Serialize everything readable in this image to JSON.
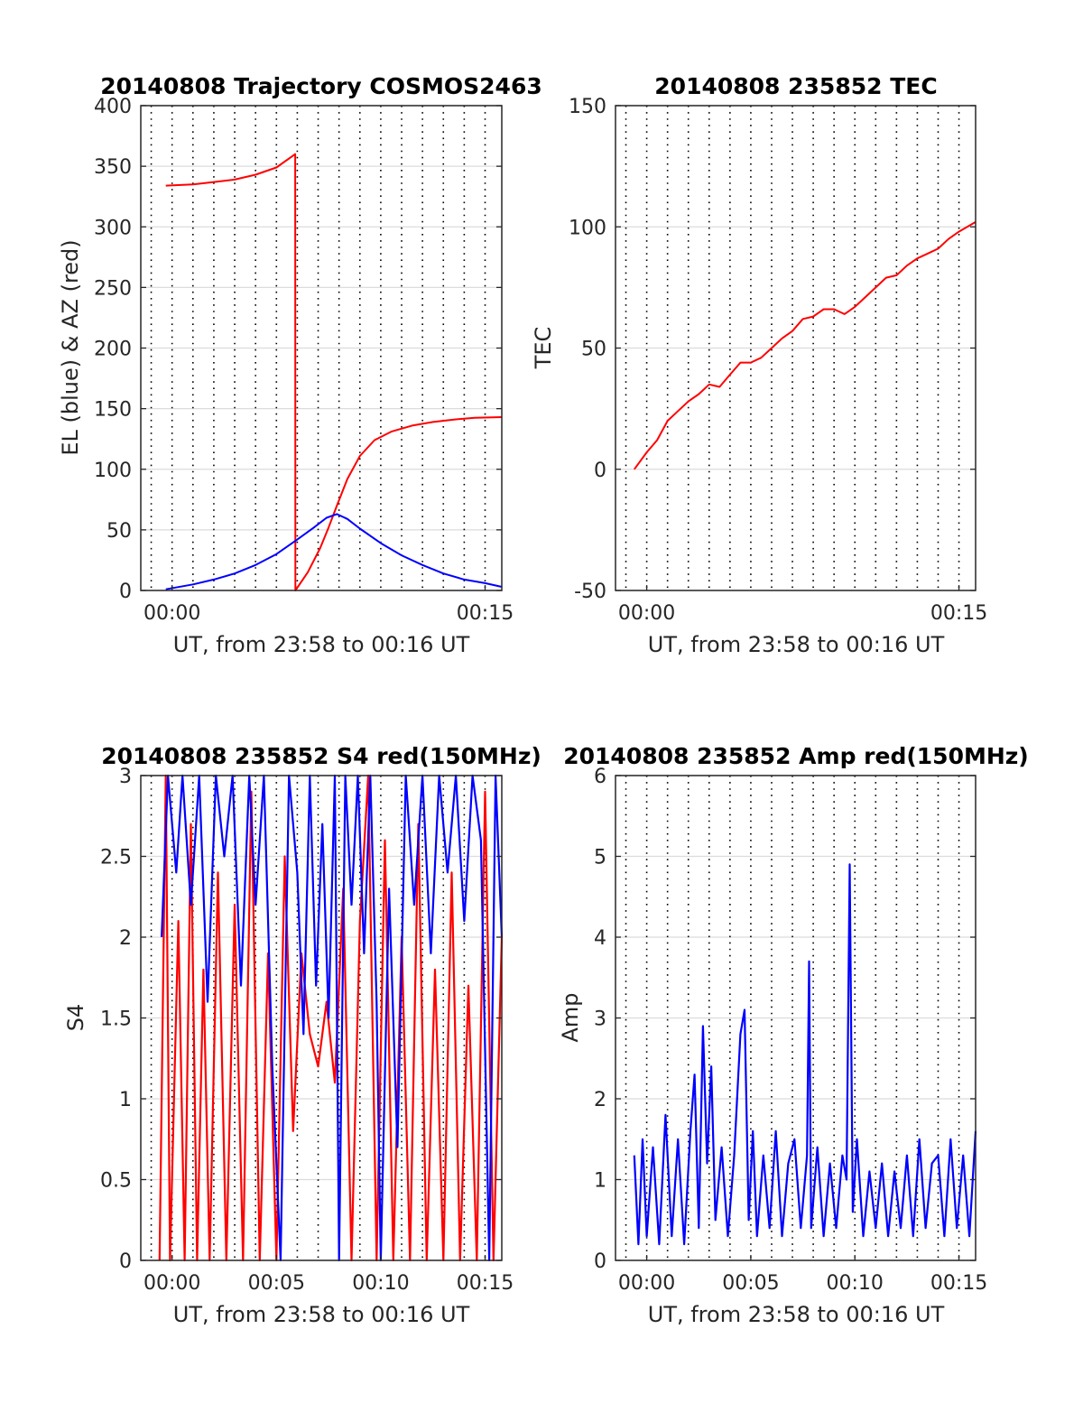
{
  "chart_data": [
    {
      "id": "trajectory",
      "type": "line",
      "title": "20140808 Trajectory COSMOS2463",
      "xlabel": "UT, from 23:58 to 00:16 UT",
      "ylabel": "EL (blue) & AZ (red)",
      "x_unit": "minutes from 00:00 UT",
      "xlim": [
        -1.5,
        15.8
      ],
      "ylim": [
        0,
        400
      ],
      "yticks": [
        0,
        50,
        100,
        150,
        200,
        250,
        300,
        350,
        400
      ],
      "xticks": [
        {
          "value": 0,
          "label": "00:00"
        },
        {
          "value": 15,
          "label": "00:15"
        }
      ],
      "grid_x_values": [
        -1,
        0,
        1,
        2,
        3,
        4,
        5,
        6,
        7,
        8,
        9,
        10,
        11,
        12,
        13,
        14,
        15
      ],
      "series": [
        {
          "color": "#ff0000",
          "x": [
            -0.3,
            1,
            2,
            3,
            4,
            5,
            5.9,
            5.91,
            6.5,
            7.1,
            7.5,
            7.9,
            8.4,
            9,
            9.7,
            10.5,
            11.5,
            12.5,
            13.5,
            14.5,
            15.8
          ],
          "y": [
            334,
            335,
            337,
            339,
            343,
            349,
            360,
            0,
            15,
            35,
            52,
            70,
            92,
            111,
            124,
            131,
            136,
            139,
            141,
            142.5,
            143
          ]
        },
        {
          "color": "#0000ff",
          "x": [
            -0.3,
            1,
            2,
            3,
            4,
            5,
            6,
            6.8,
            7.4,
            7.9,
            8.4,
            9,
            10,
            11,
            12,
            13,
            14,
            15,
            15.8
          ],
          "y": [
            1,
            5,
            9,
            14,
            21,
            30,
            42,
            52,
            60,
            63,
            59,
            51,
            39,
            29,
            21,
            14,
            9,
            6,
            3
          ]
        }
      ]
    },
    {
      "id": "tec",
      "type": "line",
      "title": "20140808 235852 TEC",
      "xlabel": "UT, from 23:58 to 00:16 UT",
      "ylabel": "TEC",
      "x_unit": "minutes from 00:00 UT",
      "xlim": [
        -1.5,
        15.8
      ],
      "ylim": [
        -50,
        150
      ],
      "yticks": [
        -50,
        0,
        50,
        100,
        150
      ],
      "xticks": [
        {
          "value": 0,
          "label": "00:00"
        },
        {
          "value": 15,
          "label": "00:15"
        }
      ],
      "grid_x_values": [
        -1,
        0,
        1,
        2,
        3,
        4,
        5,
        6,
        7,
        8,
        9,
        10,
        11,
        12,
        13,
        14,
        15
      ],
      "series": [
        {
          "color": "#ff0000",
          "x": [
            -0.6,
            0,
            0.5,
            1,
            1.5,
            2,
            2.5,
            3,
            3.5,
            4,
            4.5,
            5,
            5.5,
            6,
            6.5,
            7,
            7.5,
            8,
            8.5,
            9,
            9.5,
            10,
            10.5,
            11,
            11.5,
            12,
            12.5,
            13,
            13.5,
            14,
            14.5,
            15,
            15.8
          ],
          "y": [
            0,
            7,
            12,
            20,
            24,
            28,
            31,
            35,
            34,
            39,
            44,
            44,
            46,
            50,
            54,
            57,
            62,
            63,
            66,
            66,
            64,
            67,
            71,
            75,
            79,
            80,
            84,
            87,
            89,
            91,
            95,
            98,
            102
          ]
        }
      ]
    },
    {
      "id": "s4",
      "type": "line",
      "title": "20140808 235852 S4 red(150MHz)",
      "xlabel": "UT, from 23:58 to 00:16 UT",
      "ylabel": "S4",
      "x_unit": "minutes from 00:00 UT",
      "xlim": [
        -1.5,
        15.8
      ],
      "ylim": [
        0,
        3
      ],
      "yticks": [
        0,
        0.5,
        1,
        1.5,
        2,
        2.5,
        3
      ],
      "xticks": [
        {
          "value": 0,
          "label": "00:00"
        },
        {
          "value": 5,
          "label": "00:05"
        },
        {
          "value": 10,
          "label": "00:10"
        },
        {
          "value": 15,
          "label": "00:15"
        }
      ],
      "grid_x_values": [
        -1,
        0,
        1,
        2,
        3,
        4,
        5,
        6,
        7,
        8,
        9,
        10,
        11,
        12,
        13,
        14,
        15
      ],
      "series": [
        {
          "color": "#ff0000",
          "x": [
            -0.6,
            -0.3,
            -0.1,
            0.3,
            0.6,
            0.9,
            1.2,
            1.5,
            1.8,
            2.2,
            2.6,
            3.0,
            3.4,
            3.8,
            4.2,
            4.6,
            5.0,
            5.4,
            5.8,
            6.2,
            6.6,
            7.0,
            7.4,
            7.8,
            8.2,
            8.6,
            9.0,
            9.4,
            9.8,
            10.2,
            10.6,
            11.0,
            11.4,
            11.8,
            12.2,
            12.6,
            13.0,
            13.4,
            13.8,
            14.2,
            14.6,
            15.0,
            15.4,
            15.8
          ],
          "y": [
            0,
            3,
            0,
            2.1,
            0,
            2.7,
            0,
            1.8,
            0,
            2.4,
            0,
            2.2,
            0,
            2.9,
            0,
            1.9,
            0,
            2.5,
            0.8,
            1.9,
            1.4,
            1.2,
            1.6,
            1.1,
            2.3,
            0,
            2.1,
            3,
            0,
            2.6,
            0,
            2.0,
            0,
            2.7,
            0,
            1.8,
            0,
            2.4,
            0,
            1.7,
            0,
            2.9,
            0,
            2.0
          ]
        },
        {
          "color": "#0000ff",
          "x": [
            -0.5,
            -0.2,
            0.2,
            0.5,
            0.9,
            1.3,
            1.7,
            2.1,
            2.5,
            2.9,
            3.3,
            3.7,
            4.0,
            4.4,
            4.8,
            5.2,
            5.6,
            6.0,
            6.3,
            6.6,
            6.9,
            7.2,
            7.5,
            7.8,
            8.0,
            8.3,
            8.6,
            8.9,
            9.2,
            9.5,
            9.8,
            10.0,
            10.4,
            10.8,
            11.2,
            11.6,
            12.0,
            12.4,
            12.8,
            13.2,
            13.6,
            14.0,
            14.4,
            14.8,
            15.2,
            15.5,
            15.8
          ],
          "y": [
            2.0,
            3,
            2.4,
            3,
            2.2,
            3,
            1.6,
            3,
            2.5,
            3,
            1.7,
            3,
            2.2,
            3,
            1.2,
            0,
            3,
            2.4,
            1.4,
            3,
            1.7,
            2.7,
            1.5,
            3,
            0,
            3,
            2.2,
            3,
            1.9,
            3,
            1.6,
            0,
            2.3,
            0.7,
            3,
            2.2,
            3,
            1.9,
            3,
            2.4,
            3,
            2.1,
            3,
            2.6,
            0,
            3,
            2.0
          ]
        }
      ]
    },
    {
      "id": "amp",
      "type": "line",
      "title": "20140808 235852 Amp red(150MHz)",
      "xlabel": "UT, from 23:58 to 00:16 UT",
      "ylabel": "Amp",
      "x_unit": "minutes from 00:00 UT",
      "xlim": [
        -1.5,
        15.8
      ],
      "ylim": [
        0,
        6
      ],
      "yticks": [
        0,
        1,
        2,
        3,
        4,
        5,
        6
      ],
      "xticks": [
        {
          "value": 0,
          "label": "00:00"
        },
        {
          "value": 5,
          "label": "00:05"
        },
        {
          "value": 10,
          "label": "00:10"
        },
        {
          "value": 15,
          "label": "00:15"
        }
      ],
      "grid_x_values": [
        -1,
        0,
        1,
        2,
        3,
        4,
        5,
        6,
        7,
        8,
        9,
        10,
        11,
        12,
        13,
        14,
        15
      ],
      "series": [
        {
          "color": "#0000ff",
          "x": [
            -0.6,
            -0.4,
            -0.2,
            0,
            0.3,
            0.6,
            0.9,
            1.2,
            1.5,
            1.8,
            2.1,
            2.3,
            2.5,
            2.7,
            2.9,
            3.1,
            3.3,
            3.6,
            3.9,
            4.2,
            4.5,
            4.7,
            4.9,
            5.1,
            5.3,
            5.6,
            5.9,
            6.2,
            6.5,
            6.8,
            7.1,
            7.4,
            7.7,
            7.8,
            7.9,
            8.2,
            8.5,
            8.8,
            9.1,
            9.4,
            9.6,
            9.75,
            9.9,
            10.1,
            10.4,
            10.7,
            11.0,
            11.3,
            11.6,
            11.9,
            12.2,
            12.5,
            12.8,
            13.1,
            13.4,
            13.7,
            14.0,
            14.3,
            14.6,
            14.9,
            15.2,
            15.5,
            15.8
          ],
          "y": [
            1.3,
            0.2,
            1.5,
            0.3,
            1.4,
            0.2,
            1.8,
            0.3,
            1.5,
            0.2,
            1.6,
            2.3,
            0.4,
            2.9,
            1.2,
            2.4,
            0.5,
            1.4,
            0.3,
            1.3,
            2.8,
            3.1,
            0.5,
            1.6,
            0.3,
            1.3,
            0.4,
            1.6,
            0.3,
            1.2,
            1.5,
            0.4,
            1.3,
            3.7,
            0.4,
            1.4,
            0.3,
            1.2,
            0.4,
            1.3,
            1.0,
            4.9,
            0.6,
            1.5,
            0.3,
            1.1,
            0.4,
            1.2,
            0.3,
            1.1,
            0.4,
            1.3,
            0.3,
            1.5,
            0.4,
            1.2,
            1.3,
            0.3,
            1.5,
            0.4,
            1.3,
            0.3,
            1.6
          ]
        }
      ]
    }
  ]
}
